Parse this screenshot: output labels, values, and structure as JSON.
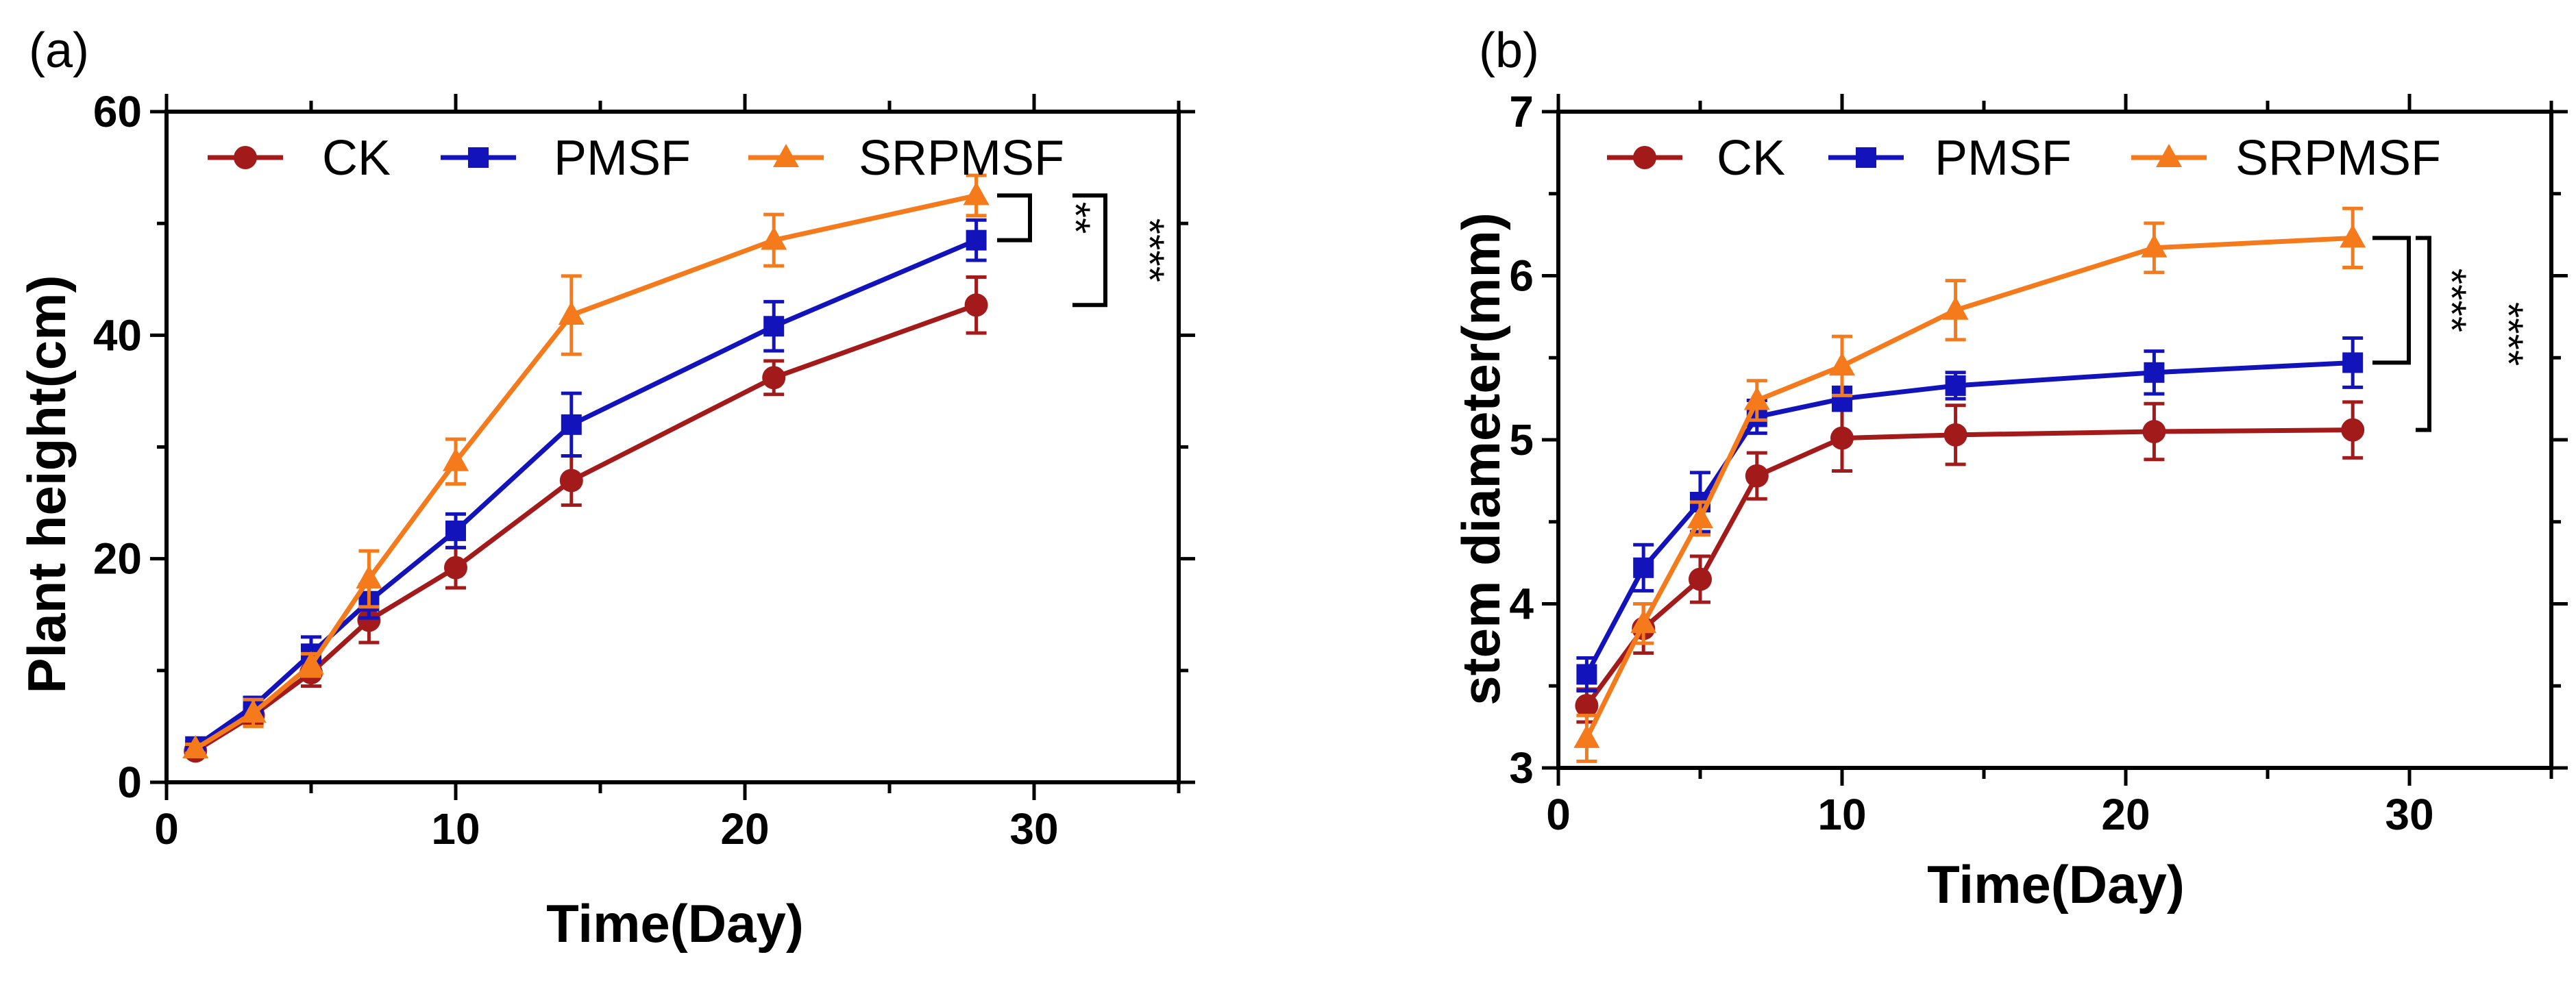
{
  "figure_colors": {
    "CK": "#a31a1a",
    "PMSF": "#1313bb",
    "SRPMSF": "#f47a1c"
  },
  "chart_data": [
    {
      "panel_label": "(a)",
      "type": "line",
      "xlabel": "Time(Day)",
      "ylabel": "Plant height(cm)",
      "xlim": [
        0,
        35
      ],
      "ylim": [
        0,
        60
      ],
      "x_ticks": [
        0,
        10,
        20,
        30
      ],
      "y_ticks": [
        0,
        20,
        40,
        60
      ],
      "grid": false,
      "legend_position": "top",
      "series": [
        {
          "name": "CK",
          "color": "#a31a1a",
          "marker": "circle",
          "x": [
            1,
            3,
            5,
            7,
            10,
            14,
            21,
            28
          ],
          "y": [
            2.8,
            6.0,
            9.8,
            14.5,
            19.2,
            27.0,
            36.2,
            42.7
          ],
          "err": [
            0.5,
            0.8,
            1.2,
            2.0,
            1.8,
            2.2,
            1.5,
            2.5
          ]
        },
        {
          "name": "PMSF",
          "color": "#1313bb",
          "marker": "square",
          "x": [
            1,
            3,
            5,
            7,
            10,
            14,
            21,
            28
          ],
          "y": [
            3.2,
            6.8,
            11.5,
            16.2,
            22.5,
            32.0,
            40.8,
            48.5
          ],
          "err": [
            0.4,
            0.8,
            1.5,
            1.5,
            1.5,
            2.8,
            2.2,
            1.8
          ]
        },
        {
          "name": "SRPMSF",
          "color": "#f47a1c",
          "marker": "triangle",
          "x": [
            1,
            3,
            5,
            7,
            10,
            14,
            21,
            28
          ],
          "y": [
            3.0,
            6.2,
            10.5,
            18.2,
            28.7,
            41.8,
            48.5,
            52.5
          ],
          "err": [
            0.4,
            1.2,
            1.0,
            2.5,
            2.0,
            3.5,
            2.3,
            1.8
          ]
        }
      ],
      "significance": [
        {
          "label": "**",
          "from_series": "SRPMSF",
          "to_series": "PMSF"
        },
        {
          "label": "****",
          "from_series": "SRPMSF",
          "to_series": "CK"
        }
      ]
    },
    {
      "panel_label": "(b)",
      "type": "line",
      "xlabel": "Time(Day)",
      "ylabel": "stem diameter(mm)",
      "xlim": [
        0,
        35
      ],
      "ylim": [
        3,
        7
      ],
      "x_ticks": [
        0,
        10,
        20,
        30
      ],
      "y_ticks": [
        3,
        4,
        5,
        6,
        7
      ],
      "grid": false,
      "legend_position": "top",
      "series": [
        {
          "name": "CK",
          "color": "#a31a1a",
          "marker": "circle",
          "x": [
            1,
            3,
            5,
            7,
            10,
            14,
            21,
            28
          ],
          "y": [
            3.38,
            3.85,
            4.15,
            4.78,
            5.01,
            5.03,
            5.05,
            5.06
          ],
          "err": [
            0.1,
            0.15,
            0.14,
            0.14,
            0.2,
            0.18,
            0.17,
            0.17
          ]
        },
        {
          "name": "PMSF",
          "color": "#1313bb",
          "marker": "square",
          "x": [
            1,
            3,
            5,
            7,
            10,
            14,
            21,
            28
          ],
          "y": [
            3.57,
            4.22,
            4.62,
            5.14,
            5.25,
            5.33,
            5.41,
            5.47
          ],
          "err": [
            0.1,
            0.14,
            0.18,
            0.1,
            0.07,
            0.08,
            0.13,
            0.15
          ]
        },
        {
          "name": "SRPMSF",
          "color": "#f47a1c",
          "marker": "triangle",
          "x": [
            1,
            3,
            5,
            7,
            10,
            14,
            21,
            28
          ],
          "y": [
            3.18,
            3.88,
            4.52,
            5.24,
            5.45,
            5.79,
            6.17,
            6.23
          ],
          "err": [
            0.14,
            0.12,
            0.1,
            0.12,
            0.18,
            0.18,
            0.15,
            0.18
          ]
        }
      ],
      "significance": [
        {
          "label": "****",
          "from_series": "SRPMSF",
          "to_series": "PMSF"
        },
        {
          "label": "****",
          "from_series": "SRPMSF",
          "to_series": "CK"
        }
      ]
    }
  ]
}
